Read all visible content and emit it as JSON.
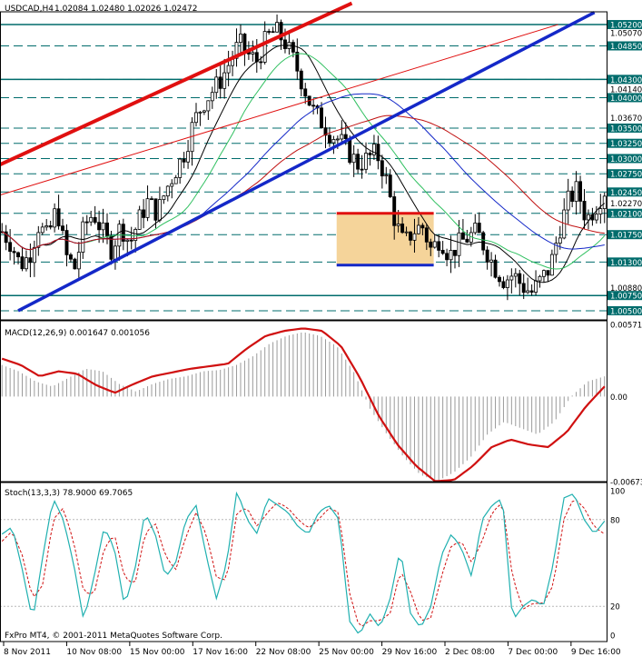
{
  "header": {
    "symbol": "USDCAD,H4",
    "ohlc": "1.02084 1.02480 1.02026 1.02472"
  },
  "colors": {
    "background": "#ffffff",
    "bull_candle": "#ffffff",
    "bear_candle": "#000000",
    "level_line": "#006c6c",
    "price_label_bg": "#006c6c",
    "red_channel": "#e01010",
    "blue_trend": "#1428c8",
    "box_fill": "#f5d49a",
    "macd_signal": "#d01010",
    "stoch_main": "#20b0b0",
    "stoch_signal": "#d01010",
    "ma_fast": "#000000",
    "ma_mid": "#30c060",
    "ma_slow_blue": "#1428c8",
    "ma_slow_red": "#c01010"
  },
  "chart_data": [
    {
      "type": "candlestick",
      "title": "USDCAD,H4",
      "ylim": [
        1.0035,
        1.0535
      ],
      "horizontal_levels": [
        1.052,
        1.0485,
        1.043,
        1.04,
        1.035,
        1.0325,
        1.03,
        1.0275,
        1.0245,
        1.021,
        1.0175,
        1.013,
        1.0075,
        1.005
      ],
      "axis_ticks": [
        "1.05070",
        "1.04140",
        "1.03670",
        "1.02270",
        "1.00880"
      ],
      "price_labels": [
        {
          "text": "1.05200",
          "value": 1.052,
          "highlight": true
        },
        {
          "text": "1.05070",
          "value": 1.0507,
          "highlight": false
        },
        {
          "text": "1.04850",
          "value": 1.0485,
          "highlight": true
        },
        {
          "text": "1.04300",
          "value": 1.043,
          "highlight": true
        },
        {
          "text": "1.04140",
          "value": 1.0414,
          "highlight": false
        },
        {
          "text": "1.04000",
          "value": 1.04,
          "highlight": true
        },
        {
          "text": "1.03670",
          "value": 1.0367,
          "highlight": false
        },
        {
          "text": "1.03500",
          "value": 1.035,
          "highlight": true
        },
        {
          "text": "1.03250",
          "value": 1.0325,
          "highlight": true
        },
        {
          "text": "1.03000",
          "value": 1.03,
          "highlight": true
        },
        {
          "text": "1.02750",
          "value": 1.0275,
          "highlight": true
        },
        {
          "text": "1.02450",
          "value": 1.0245,
          "highlight": true
        },
        {
          "text": "1.02270",
          "value": 1.0227,
          "highlight": false
        },
        {
          "text": "1.02100",
          "value": 1.021,
          "highlight": true
        },
        {
          "text": "1.01750",
          "value": 1.0175,
          "highlight": true
        },
        {
          "text": "1.01300",
          "value": 1.013,
          "highlight": true
        },
        {
          "text": "1.00880",
          "value": 1.0088,
          "highlight": false
        },
        {
          "text": "1.00750",
          "value": 1.0075,
          "highlight": true
        },
        {
          "text": "1.00500",
          "value": 1.005,
          "highlight": true
        }
      ],
      "close_anchors": [
        1.018,
        1.016,
        1.0125,
        1.014,
        1.019,
        1.017,
        1.022,
        1.014,
        1.012,
        1.019,
        1.021,
        1.018,
        1.015,
        1.019,
        1.016,
        1.02,
        1.023,
        1.021,
        1.025,
        1.028,
        1.031,
        1.036,
        1.039,
        1.041,
        1.043,
        1.046,
        1.049,
        1.047,
        1.046,
        1.05,
        1.051,
        1.049,
        1.046,
        1.042,
        1.038,
        1.036,
        1.034,
        1.033,
        1.031,
        1.029,
        1.03,
        1.031,
        1.027,
        1.02,
        1.016,
        1.018,
        1.019,
        1.015,
        1.017,
        1.014,
        1.016,
        1.017,
        1.018,
        1.015,
        1.012,
        1.01,
        1.011,
        1.009,
        1.008,
        1.01,
        1.012,
        1.018,
        1.023,
        1.025,
        1.02,
        1.022,
        1.0247
      ],
      "annotations": {
        "red_channel_upper": [
          [
            22,
            1.0315
          ],
          [
            40,
            1.055
          ]
        ],
        "red_channel_thin": [
          [
            0,
            1.024
          ],
          [
            92,
            1.052
          ]
        ],
        "blue_trendline": [
          [
            3,
            1.005
          ],
          [
            98,
            1.054
          ]
        ],
        "range_box": {
          "left_pct": 55.5,
          "right_pct": 71.5,
          "top": 1.021,
          "bottom": 1.0125
        },
        "red_box_top": 1.021,
        "blue_box_bottom": 1.0125
      }
    },
    {
      "type": "histogram",
      "title": "MACD(12,26,9) 0.001647 0.001056",
      "axis_ticks": [
        "0.00571",
        "0.00",
        "-0.00673"
      ],
      "ylim": [
        -0.00673,
        0.00571
      ],
      "histogram_anchors": [
        0.0025,
        0.002,
        0.0012,
        0.0008,
        0.0015,
        0.0022,
        0.002,
        0.001,
        0.0004,
        0.001,
        0.0014,
        0.0016,
        0.002,
        0.0021,
        0.0025,
        0.0032,
        0.0042,
        0.0048,
        0.0051,
        0.0048,
        0.004,
        0.002,
        -0.001,
        -0.003,
        -0.0048,
        -0.0062,
        -0.0067,
        -0.006,
        -0.0048,
        -0.003,
        -0.002,
        -0.0025,
        -0.003,
        -0.002,
        0.0,
        0.0012,
        0.0016
      ],
      "signal_anchors": [
        0.003,
        0.0025,
        0.0016,
        0.002,
        0.0018,
        0.0009,
        0.0003,
        0.001,
        0.0016,
        0.0019,
        0.0022,
        0.0024,
        0.0026,
        0.0038,
        0.0048,
        0.0052,
        0.0054,
        0.0052,
        0.004,
        0.0015,
        -0.0015,
        -0.0038,
        -0.0055,
        -0.0067,
        -0.0066,
        -0.0055,
        -0.004,
        -0.0034,
        -0.0038,
        -0.004,
        -0.0028,
        -0.0008,
        0.0008
      ],
      "series": [
        {
          "name": "MACD"
        },
        {
          "name": "Signal"
        }
      ]
    },
    {
      "type": "line",
      "title": "Stoch(13,3,3) 78.9000 69.7065",
      "axis_ticks": [
        "100",
        "80",
        "20",
        "0"
      ],
      "ylim": [
        0,
        100
      ],
      "levels": [
        80,
        20
      ],
      "main_anchors": [
        70,
        75,
        45,
        10,
        55,
        95,
        80,
        50,
        10,
        40,
        75,
        60,
        20,
        45,
        85,
        70,
        40,
        50,
        80,
        90,
        55,
        25,
        50,
        100,
        80,
        70,
        95,
        90,
        85,
        75,
        70,
        85,
        90,
        80,
        10,
        0,
        15,
        5,
        25,
        60,
        15,
        5,
        20,
        55,
        70,
        60,
        40,
        80,
        90,
        95,
        10,
        20,
        25,
        20,
        50,
        95,
        98,
        80,
        70,
        79
      ],
      "signal_anchors": [
        65,
        72,
        55,
        25,
        35,
        80,
        88,
        65,
        30,
        28,
        60,
        70,
        40,
        35,
        70,
        78,
        55,
        45,
        68,
        85,
        70,
        40,
        38,
        85,
        88,
        75,
        85,
        92,
        88,
        80,
        74,
        80,
        88,
        85,
        30,
        5,
        10,
        10,
        15,
        45,
        30,
        10,
        12,
        40,
        62,
        65,
        50,
        65,
        85,
        92,
        40,
        18,
        22,
        22,
        35,
        80,
        95,
        88,
        75,
        70
      ],
      "series": [
        {
          "name": "Stoch main"
        },
        {
          "name": "Signal"
        }
      ]
    }
  ],
  "x_axis": {
    "ticks": [
      "8 Nov 2011",
      "10 Nov 08:00",
      "15 Nov 00:00",
      "17 Nov 16:00",
      "22 Nov 08:00",
      "25 Nov 00:00",
      "29 Nov 16:00",
      "2 Dec 08:00",
      "7 Dec 00:00",
      "9 Dec 16:00"
    ]
  },
  "footer": {
    "copyright": "FxPro MT4, © 2001-2011 MetaQuotes Software Corp."
  }
}
